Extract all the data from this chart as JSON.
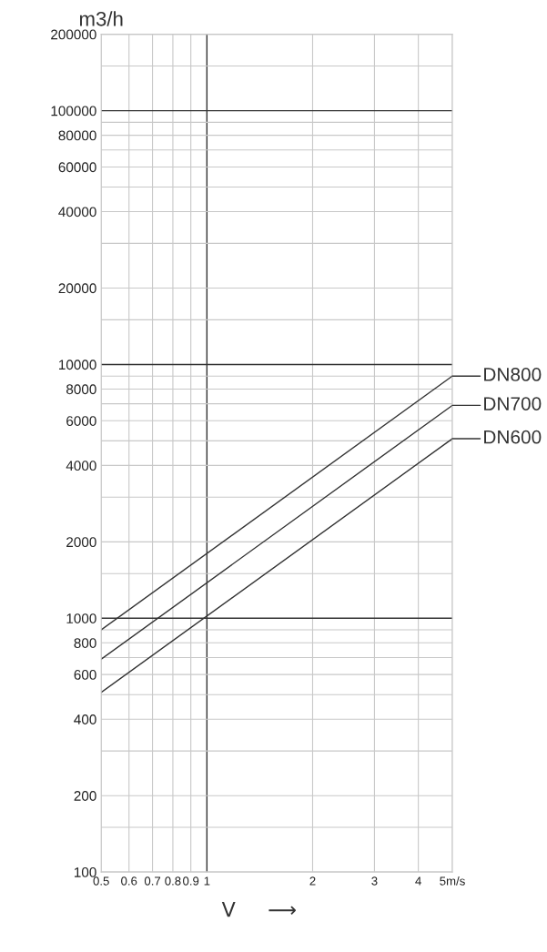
{
  "chart_data": {
    "type": "line",
    "xlabel": "V     ⟶",
    "ylabel": "m3/h",
    "log": "xy",
    "grid": true,
    "legend": "right",
    "marker": "none",
    "line_style": "solid",
    "x": [
      0.5,
      5
    ],
    "series": [
      {
        "name": "DN800",
        "color": "#333333",
        "values": [
          900,
          9000
        ]
      },
      {
        "name": "DN700",
        "color": "#333333",
        "values": [
          690,
          6900
        ]
      },
      {
        "name": "DN600",
        "color": "#333333",
        "values": [
          510,
          5100
        ]
      }
    ],
    "xlim": [
      0.5,
      5
    ],
    "ylim": [
      100,
      200000
    ],
    "xticks": [
      0.5,
      0.6,
      0.7,
      0.8,
      0.9,
      1,
      2,
      3,
      4,
      {
        "value": 5,
        "label": "5m/s"
      }
    ],
    "yticks": [
      100,
      {
        "value": 150,
        "label": null
      },
      200,
      {
        "value": 300,
        "label": null
      },
      400,
      {
        "value": 500,
        "label": null
      },
      600,
      {
        "value": 700,
        "label": null
      },
      800,
      {
        "value": 900,
        "label": null
      },
      1000,
      {
        "value": 1500,
        "label": null
      },
      2000,
      {
        "value": 3000,
        "label": null
      },
      4000,
      {
        "value": 5000,
        "label": null
      },
      6000,
      {
        "value": 7000,
        "label": null
      },
      8000,
      {
        "value": 9000,
        "label": null
      },
      10000,
      {
        "value": 15000,
        "label": null
      },
      20000,
      {
        "value": 30000,
        "label": null
      },
      40000,
      {
        "value": 50000,
        "label": null
      },
      60000,
      {
        "value": 70000,
        "label": null
      },
      80000,
      {
        "value": 90000,
        "label": null
      },
      100000,
      {
        "value": 150000,
        "label": null
      },
      200000
    ]
  }
}
